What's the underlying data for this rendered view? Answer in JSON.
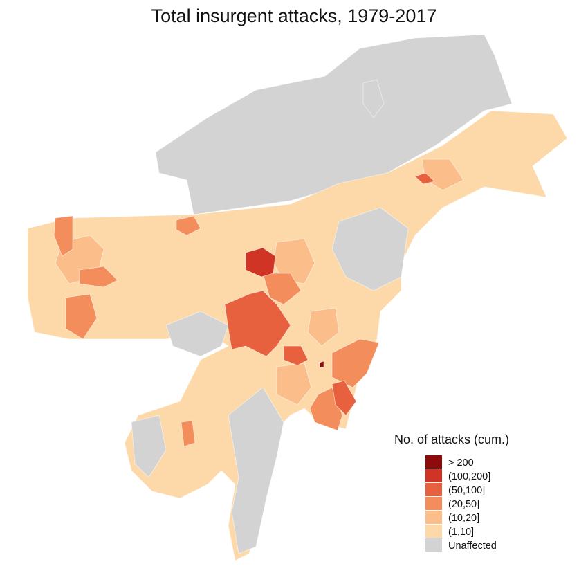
{
  "title": "Total insurgent attacks, 1979-2017",
  "legend": {
    "title": "No. of attacks (cum.)",
    "items": [
      {
        "label": "> 200",
        "color": "#8e0b0b"
      },
      {
        "label": "(100,200]",
        "color": "#cf3424"
      },
      {
        "label": "(50,100]",
        "color": "#e8613f"
      },
      {
        "label": "(20,50]",
        "color": "#f48d5c"
      },
      {
        "label": "(10,20]",
        "color": "#fbbd89"
      },
      {
        "label": "(1,10]",
        "color": "#fdd9a9"
      },
      {
        "label": "Unaffected",
        "color": "#d3d3d3"
      }
    ]
  }
}
